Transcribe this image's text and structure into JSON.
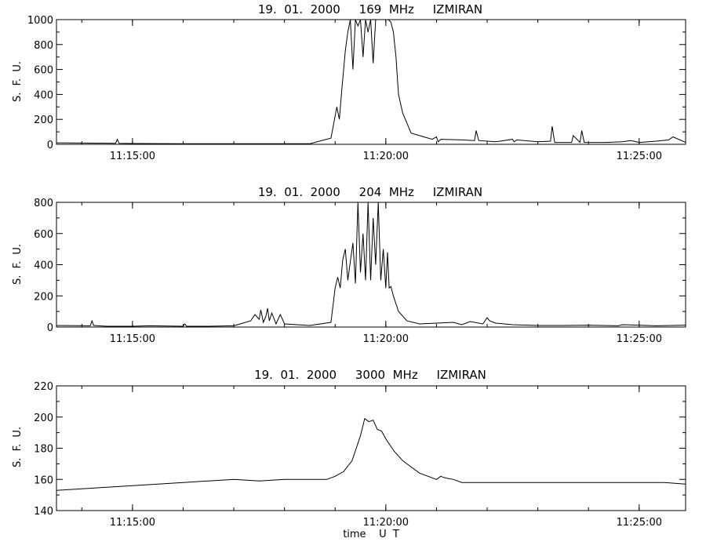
{
  "colors": {
    "background": "#ffffff",
    "line": "#000000"
  },
  "chart_data": [
    {
      "type": "line",
      "title": "19.  01.  2000     169  MHz     IZMIRAN",
      "ylabel": "S.  F.  U.",
      "xlabel": "",
      "xlim": [
        "11:13:30",
        "11:25:55"
      ],
      "ylim": [
        0,
        1000
      ],
      "yticks": [
        "0",
        "200",
        "400",
        "600",
        "800",
        "1000"
      ],
      "xticks": [
        "11:15:00",
        "11:20:00",
        "11:25:00"
      ],
      "grid": false,
      "series": [
        {
          "x": [
            "11:13:30",
            "11:14:00",
            "11:14:40",
            "11:14:42",
            "11:14:44",
            "11:15:00",
            "11:16:00",
            "11:17:00",
            "11:18:00",
            "11:18:30",
            "11:18:55",
            "11:19:02",
            "11:19:05",
            "11:19:08",
            "11:19:12",
            "11:19:15",
            "11:19:18",
            "11:19:21",
            "11:19:24",
            "11:19:27",
            "11:19:30",
            "11:19:33",
            "11:19:36",
            "11:19:39",
            "11:19:42",
            "11:19:45",
            "11:19:48",
            "11:19:51",
            "11:19:54",
            "11:19:57",
            "11:20:00",
            "11:20:03",
            "11:20:06",
            "11:20:09",
            "11:20:12",
            "11:20:15",
            "11:20:20",
            "11:20:30",
            "11:20:45",
            "11:20:55",
            "11:21:00",
            "11:21:02",
            "11:21:05",
            "11:21:30",
            "11:21:45",
            "11:21:47",
            "11:21:50",
            "11:22:10",
            "11:22:30",
            "11:22:32",
            "11:22:35",
            "11:23:00",
            "11:23:15",
            "11:23:17",
            "11:23:20",
            "11:23:40",
            "11:23:42",
            "11:23:50",
            "11:23:52",
            "11:23:55",
            "11:24:20",
            "11:24:40",
            "11:24:50",
            "11:25:00",
            "11:25:20",
            "11:25:35",
            "11:25:40",
            "11:25:55"
          ],
          "y": [
            12,
            10,
            8,
            40,
            8,
            6,
            5,
            5,
            5,
            5,
            50,
            300,
            200,
            450,
            750,
            900,
            1000,
            600,
            1000,
            950,
            1000,
            700,
            1000,
            900,
            1000,
            650,
            1000,
            1000,
            1000,
            1000,
            1000,
            1000,
            980,
            900,
            700,
            400,
            250,
            90,
            60,
            40,
            60,
            20,
            40,
            35,
            30,
            110,
            30,
            20,
            40,
            20,
            35,
            20,
            25,
            145,
            15,
            15,
            70,
            15,
            110,
            15,
            15,
            20,
            30,
            15,
            25,
            35,
            60,
            15
          ]
        }
      ]
    },
    {
      "type": "line",
      "title": "19.  01.  2000     204  MHz     IZMIRAN",
      "ylabel": "S.  F.  U.",
      "xlabel": "",
      "xlim": [
        "11:13:30",
        "11:25:55"
      ],
      "ylim": [
        0,
        800
      ],
      "yticks": [
        "0",
        "200",
        "400",
        "600",
        "800"
      ],
      "xticks": [
        "11:15:00",
        "11:20:00",
        "11:25:00"
      ],
      "grid": false,
      "series": [
        {
          "x": [
            "11:13:30",
            "11:14:10",
            "11:14:12",
            "11:14:14",
            "11:14:30",
            "11:15:00",
            "11:15:20",
            "11:16:00",
            "11:16:02",
            "11:16:04",
            "11:16:30",
            "11:17:00",
            "11:17:20",
            "11:17:25",
            "11:17:30",
            "11:17:32",
            "11:17:35",
            "11:17:38",
            "11:17:40",
            "11:17:42",
            "11:17:45",
            "11:17:50",
            "11:17:55",
            "11:18:00",
            "11:18:30",
            "11:18:55",
            "11:19:00",
            "11:19:03",
            "11:19:06",
            "11:19:09",
            "11:19:12",
            "11:19:15",
            "11:19:18",
            "11:19:21",
            "11:19:24",
            "11:19:27",
            "11:19:30",
            "11:19:33",
            "11:19:36",
            "11:19:39",
            "11:19:42",
            "11:19:45",
            "11:19:48",
            "11:19:51",
            "11:19:54",
            "11:19:57",
            "11:20:00",
            "11:20:02",
            "11:20:04",
            "11:20:06",
            "11:20:09",
            "11:20:15",
            "11:20:25",
            "11:20:40",
            "11:21:00",
            "11:21:20",
            "11:21:30",
            "11:21:40",
            "11:21:55",
            "11:22:00",
            "11:22:03",
            "11:22:10",
            "11:22:30",
            "11:23:00",
            "11:23:30",
            "11:24:00",
            "11:24:35",
            "11:24:40",
            "11:25:00",
            "11:25:20",
            "11:25:55"
          ],
          "y": [
            10,
            8,
            40,
            10,
            5,
            5,
            8,
            5,
            20,
            5,
            5,
            8,
            40,
            80,
            50,
            110,
            30,
            70,
            120,
            40,
            90,
            20,
            80,
            20,
            10,
            30,
            250,
            320,
            250,
            430,
            500,
            300,
            420,
            540,
            280,
            800,
            350,
            600,
            300,
            800,
            300,
            700,
            400,
            800,
            300,
            500,
            250,
            480,
            250,
            260,
            200,
            100,
            40,
            20,
            25,
            30,
            15,
            35,
            20,
            60,
            40,
            25,
            15,
            10,
            10,
            12,
            8,
            15,
            12,
            8,
            12
          ]
        }
      ]
    },
    {
      "type": "line",
      "title": "19.  01.  2000     3000  MHz     IZMIRAN",
      "ylabel": "S.  F.  U.",
      "xlabel": "time    U  T",
      "xlim": [
        "11:13:30",
        "11:25:55"
      ],
      "ylim": [
        140,
        220
      ],
      "yticks": [
        "140",
        "160",
        "180",
        "200",
        "220"
      ],
      "xticks": [
        "11:15:00",
        "11:20:00",
        "11:25:00"
      ],
      "grid": false,
      "series": [
        {
          "x": [
            "11:13:30",
            "11:14:00",
            "11:14:30",
            "11:15:00",
            "11:15:30",
            "11:16:00",
            "11:16:30",
            "11:17:00",
            "11:17:30",
            "11:18:00",
            "11:18:30",
            "11:18:50",
            "11:19:00",
            "11:19:10",
            "11:19:20",
            "11:19:30",
            "11:19:35",
            "11:19:40",
            "11:19:45",
            "11:19:50",
            "11:19:55",
            "11:20:00",
            "11:20:10",
            "11:20:20",
            "11:20:30",
            "11:20:40",
            "11:20:50",
            "11:21:00",
            "11:21:05",
            "11:21:10",
            "11:21:20",
            "11:21:30",
            "11:22:00",
            "11:22:30",
            "11:23:00",
            "11:23:30",
            "11:24:00",
            "11:24:30",
            "11:25:00",
            "11:25:30",
            "11:25:55"
          ],
          "y": [
            153,
            154,
            155,
            156,
            157,
            158,
            159,
            160,
            159,
            160,
            160,
            160,
            162,
            165,
            172,
            188,
            199,
            197,
            198,
            192,
            191,
            186,
            178,
            172,
            168,
            164,
            162,
            160,
            162,
            161,
            160,
            158,
            158,
            158,
            158,
            158,
            158,
            158,
            158,
            158,
            157
          ]
        }
      ]
    }
  ]
}
